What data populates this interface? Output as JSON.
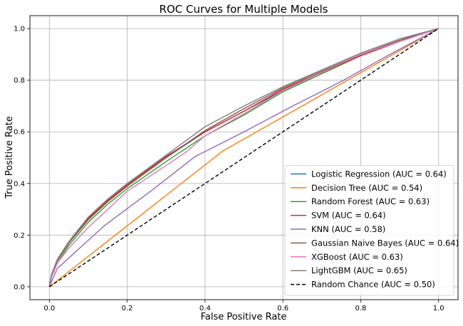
{
  "chart_data": {
    "type": "line",
    "title": "ROC Curves for Multiple Models",
    "xlabel": "False Positive Rate",
    "ylabel": "True Positive Rate",
    "xlim": [
      -0.05,
      1.05
    ],
    "ylim": [
      -0.05,
      1.05
    ],
    "xticks": [
      "0.0",
      "0.2",
      "0.4",
      "0.6",
      "0.8",
      "1.0"
    ],
    "yticks": [
      "0.0",
      "0.2",
      "0.4",
      "0.6",
      "0.8",
      "1.0"
    ],
    "grid": true,
    "legend_position": "lower-right",
    "series": [
      {
        "name": "Logistic Regression (AUC = 0.64)",
        "color": "#1f77b4",
        "dash": "solid",
        "x": [
          0,
          0.005,
          0.02,
          0.05,
          0.1,
          0.15,
          0.2,
          0.3,
          0.4,
          0.5,
          0.6,
          0.7,
          0.8,
          0.9,
          1.0
        ],
        "y": [
          0,
          0.04,
          0.1,
          0.17,
          0.26,
          0.33,
          0.39,
          0.5,
          0.6,
          0.68,
          0.76,
          0.83,
          0.9,
          0.955,
          1.0
        ]
      },
      {
        "name": "Decision Tree (AUC = 0.54)",
        "color": "#ff7f0e",
        "dash": "solid",
        "x": [
          0,
          0.445,
          1.0
        ],
        "y": [
          0,
          0.525,
          1.0
        ]
      },
      {
        "name": "Random Forest (AUC = 0.63)",
        "color": "#2ca02c",
        "dash": "solid",
        "x": [
          0,
          0.005,
          0.02,
          0.05,
          0.1,
          0.15,
          0.2,
          0.3,
          0.4,
          0.5,
          0.6,
          0.7,
          0.8,
          0.9,
          1.0
        ],
        "y": [
          0,
          0.035,
          0.09,
          0.16,
          0.25,
          0.32,
          0.38,
          0.485,
          0.585,
          0.665,
          0.755,
          0.825,
          0.895,
          0.95,
          1.0
        ]
      },
      {
        "name": "SVM (AUC = 0.64)",
        "color": "#d62728",
        "dash": "solid",
        "x": [
          0,
          0.005,
          0.02,
          0.05,
          0.1,
          0.15,
          0.2,
          0.3,
          0.4,
          0.5,
          0.6,
          0.7,
          0.8,
          0.9,
          1.0
        ],
        "y": [
          0,
          0.04,
          0.1,
          0.17,
          0.265,
          0.335,
          0.395,
          0.505,
          0.6,
          0.68,
          0.765,
          0.83,
          0.895,
          0.95,
          1.0
        ]
      },
      {
        "name": "KNN (AUC = 0.58)",
        "color": "#9467bd",
        "dash": "solid",
        "x": [
          0,
          0.02,
          0.14,
          0.26,
          0.375,
          0.5,
          0.625,
          0.75,
          0.875,
          1.0
        ],
        "y": [
          0,
          0.07,
          0.235,
          0.37,
          0.505,
          0.6,
          0.7,
          0.795,
          0.9,
          1.0
        ]
      },
      {
        "name": "Gaussian Naive Bayes (AUC = 0.64)",
        "color": "#8c564b",
        "dash": "solid",
        "x": [
          0,
          0.005,
          0.02,
          0.05,
          0.1,
          0.15,
          0.2,
          0.3,
          0.4,
          0.5,
          0.6,
          0.7,
          0.8,
          0.9,
          1.0
        ],
        "y": [
          0,
          0.04,
          0.1,
          0.17,
          0.26,
          0.33,
          0.39,
          0.5,
          0.605,
          0.69,
          0.77,
          0.835,
          0.9,
          0.955,
          1.0
        ]
      },
      {
        "name": "XGBoost (AUC = 0.63)",
        "color": "#e377c2",
        "dash": "solid",
        "x": [
          0,
          0.005,
          0.02,
          0.05,
          0.1,
          0.15,
          0.2,
          0.3,
          0.35,
          0.4,
          0.5,
          0.6,
          0.7,
          0.8,
          0.9,
          1.0
        ],
        "y": [
          0,
          0.035,
          0.09,
          0.15,
          0.23,
          0.3,
          0.37,
          0.47,
          0.52,
          0.585,
          0.67,
          0.76,
          0.83,
          0.9,
          0.95,
          1.0
        ]
      },
      {
        "name": "LightGBM (AUC = 0.65)",
        "color": "#7f7f7f",
        "dash": "solid",
        "x": [
          0,
          0.005,
          0.02,
          0.05,
          0.1,
          0.15,
          0.2,
          0.3,
          0.4,
          0.5,
          0.6,
          0.7,
          0.8,
          0.9,
          1.0
        ],
        "y": [
          0,
          0.045,
          0.105,
          0.175,
          0.27,
          0.34,
          0.4,
          0.51,
          0.62,
          0.7,
          0.775,
          0.84,
          0.905,
          0.96,
          1.0
        ]
      },
      {
        "name": "Random Chance (AUC = 0.50)",
        "color": "#000000",
        "dash": "dashed",
        "x": [
          0,
          1.0
        ],
        "y": [
          0,
          1.0
        ]
      }
    ]
  }
}
